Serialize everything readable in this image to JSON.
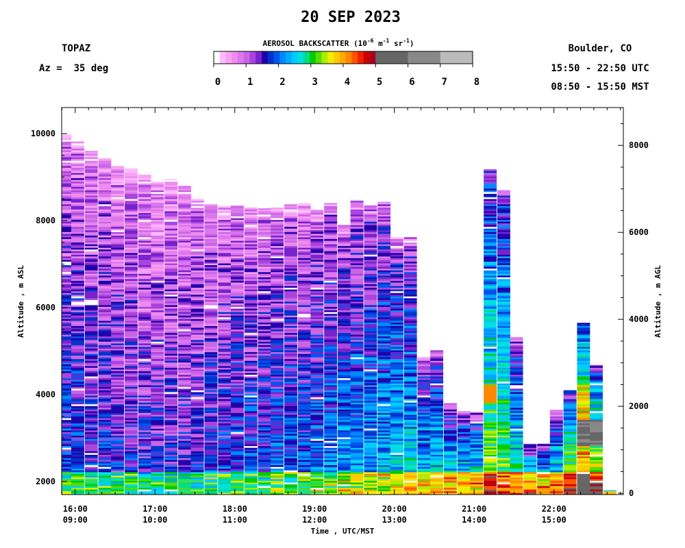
{
  "header": {
    "date": "20 SEP 2023",
    "instrument": "TOPAZ",
    "azimuth": "Az =  35 deg",
    "location": "Boulder, CO",
    "utc_range": "15:50 - 22:50 UTC",
    "mst_range": "08:50 - 15:50 MST"
  },
  "colorbar": {
    "title_prefix": "AEROSOL BACKSCATTER (10",
    "title_exp1": "-6",
    "title_mid1": " m",
    "title_exp2": "-1",
    "title_mid2": " sr",
    "title_exp3": "-1",
    "title_suffix": ")",
    "tick_labels": [
      "0",
      "1",
      "2",
      "3",
      "4",
      "5",
      "6",
      "7",
      "8"
    ],
    "colors": [
      "#ffffff",
      "#ffbbff",
      "#f7a0f7",
      "#ee8cee",
      "#dd77ee",
      "#c866e6",
      "#aa44dd",
      "#7722cc",
      "#2200aa",
      "#0033cc",
      "#0055ee",
      "#0088ff",
      "#00aaff",
      "#00ccff",
      "#00e0e0",
      "#00dd88",
      "#00cc00",
      "#55dd00",
      "#aaee00",
      "#eeee00",
      "#ffcc00",
      "#ffaa00",
      "#ff8800",
      "#ff5500",
      "#ee2200",
      "#cc0000",
      "#aa0022",
      "#666666",
      "#888888",
      "#bbbbbb"
    ]
  },
  "chart_data": {
    "type": "heatmap",
    "title": "20 SEP 2023",
    "xlabel": "Time , UTC/MST",
    "ylabel_left": "Altitude , m ASL",
    "ylabel_right": "Altitude , m AGL",
    "xlim_utc_hours": [
      15.83,
      22.87
    ],
    "ylim_asl_m": [
      1700,
      10600
    ],
    "ylim_agl_m": [
      -30,
      8870
    ],
    "x_ticks": [
      {
        "utc": "16:00",
        "mst": "09:00",
        "hour": 16
      },
      {
        "utc": "17:00",
        "mst": "10:00",
        "hour": 17
      },
      {
        "utc": "18:00",
        "mst": "11:00",
        "hour": 18
      },
      {
        "utc": "19:00",
        "mst": "12:00",
        "hour": 19
      },
      {
        "utc": "20:00",
        "mst": "13:00",
        "hour": 20
      },
      {
        "utc": "21:00",
        "mst": "14:00",
        "hour": 21
      },
      {
        "utc": "22:00",
        "mst": "15:00",
        "hour": 22
      }
    ],
    "y_ticks_asl": [
      "2000",
      "4000",
      "6000",
      "8000",
      "10000"
    ],
    "y_ticks_agl": [
      "0",
      "2000",
      "4000",
      "6000",
      "8000"
    ],
    "color_scale": {
      "min": 0,
      "max": 8,
      "unit": "10^-6 m^-1 sr^-1"
    },
    "profiles": [
      {
        "t": 15.87,
        "top": 9980,
        "base": 1.9,
        "notch": 7000
      },
      {
        "t": 16.03,
        "top": 9820,
        "base": 1.9,
        "notch": 6100
      },
      {
        "t": 16.2,
        "top": 9600,
        "base": 1.8,
        "notch": 6100
      },
      {
        "t": 16.37,
        "top": 9430,
        "base": 1.8,
        "notch": 0
      },
      {
        "t": 16.53,
        "top": 9300,
        "base": 1.7,
        "notch": 0
      },
      {
        "t": 16.7,
        "top": 9200,
        "base": 1.7,
        "notch": 0
      },
      {
        "t": 16.87,
        "top": 9100,
        "base": 1.6,
        "notch": 0
      },
      {
        "t": 17.03,
        "top": 8980,
        "base": 1.6,
        "notch": 0
      },
      {
        "t": 17.2,
        "top": 8950,
        "base": 1.6,
        "notch": 0
      },
      {
        "t": 17.37,
        "top": 8800,
        "base": 1.6,
        "notch": 0
      },
      {
        "t": 17.53,
        "top": 8500,
        "base": 1.7,
        "notch": 0
      },
      {
        "t": 17.7,
        "top": 8400,
        "base": 1.8,
        "notch": 6000
      },
      {
        "t": 17.87,
        "top": 8350,
        "base": 1.8,
        "notch": 0
      },
      {
        "t": 18.03,
        "top": 8350,
        "base": 1.9,
        "notch": 6000
      },
      {
        "t": 18.2,
        "top": 8300,
        "base": 1.9,
        "notch": 0
      },
      {
        "t": 18.37,
        "top": 8280,
        "base": 1.9,
        "notch": 0
      },
      {
        "t": 18.53,
        "top": 8300,
        "base": 2.0,
        "notch": 0
      },
      {
        "t": 18.7,
        "top": 8400,
        "base": 2.0,
        "notch": 0
      },
      {
        "t": 18.87,
        "top": 8400,
        "base": 2.0,
        "notch": 5800
      },
      {
        "t": 19.03,
        "top": 8250,
        "base": 2.1,
        "notch": 0
      },
      {
        "t": 19.2,
        "top": 8400,
        "base": 2.2,
        "notch": 0
      },
      {
        "t": 19.37,
        "top": 7900,
        "base": 2.3,
        "notch": 0
      },
      {
        "t": 19.53,
        "top": 8460,
        "base": 2.3,
        "notch": 0
      },
      {
        "t": 19.7,
        "top": 8350,
        "base": 2.4,
        "notch": 0
      },
      {
        "t": 19.87,
        "top": 8430,
        "base": 2.5,
        "notch": 0
      },
      {
        "t": 20.03,
        "top": 7620,
        "base": 2.6,
        "notch": 0
      },
      {
        "t": 20.2,
        "top": 7620,
        "base": 2.7,
        "notch": 0
      },
      {
        "t": 20.37,
        "top": 4860,
        "base": 2.7,
        "notch": 0
      },
      {
        "t": 20.53,
        "top": 5020,
        "base": 2.8,
        "notch": 0
      },
      {
        "t": 20.7,
        "top": 3800,
        "base": 2.9,
        "notch": 0
      },
      {
        "t": 20.87,
        "top": 3620,
        "base": 2.9,
        "notch": 0
      },
      {
        "t": 21.03,
        "top": 3600,
        "base": 3.0,
        "notch": 0
      },
      {
        "t": 21.2,
        "top": 9180,
        "base": 3.4,
        "notch": 0
      },
      {
        "t": 21.37,
        "top": 8700,
        "base": 3.3,
        "notch": 0
      },
      {
        "t": 21.53,
        "top": 5320,
        "base": 3.0,
        "notch": 0
      },
      {
        "t": 21.7,
        "top": 2870,
        "base": 3.2,
        "notch": 0
      },
      {
        "t": 21.87,
        "top": 2870,
        "base": 3.0,
        "notch": 0
      },
      {
        "t": 22.03,
        "top": 3650,
        "base": 3.0,
        "notch": 0
      },
      {
        "t": 22.2,
        "top": 4100,
        "base": 3.6,
        "notch": 0
      },
      {
        "t": 22.37,
        "top": 5650,
        "base": 4.5,
        "notch": 0
      },
      {
        "t": 22.53,
        "top": 4680,
        "base": 4.0,
        "notch": 0
      },
      {
        "t": 22.7,
        "top": 1800,
        "base": 3.0,
        "notch": 0
      }
    ]
  }
}
